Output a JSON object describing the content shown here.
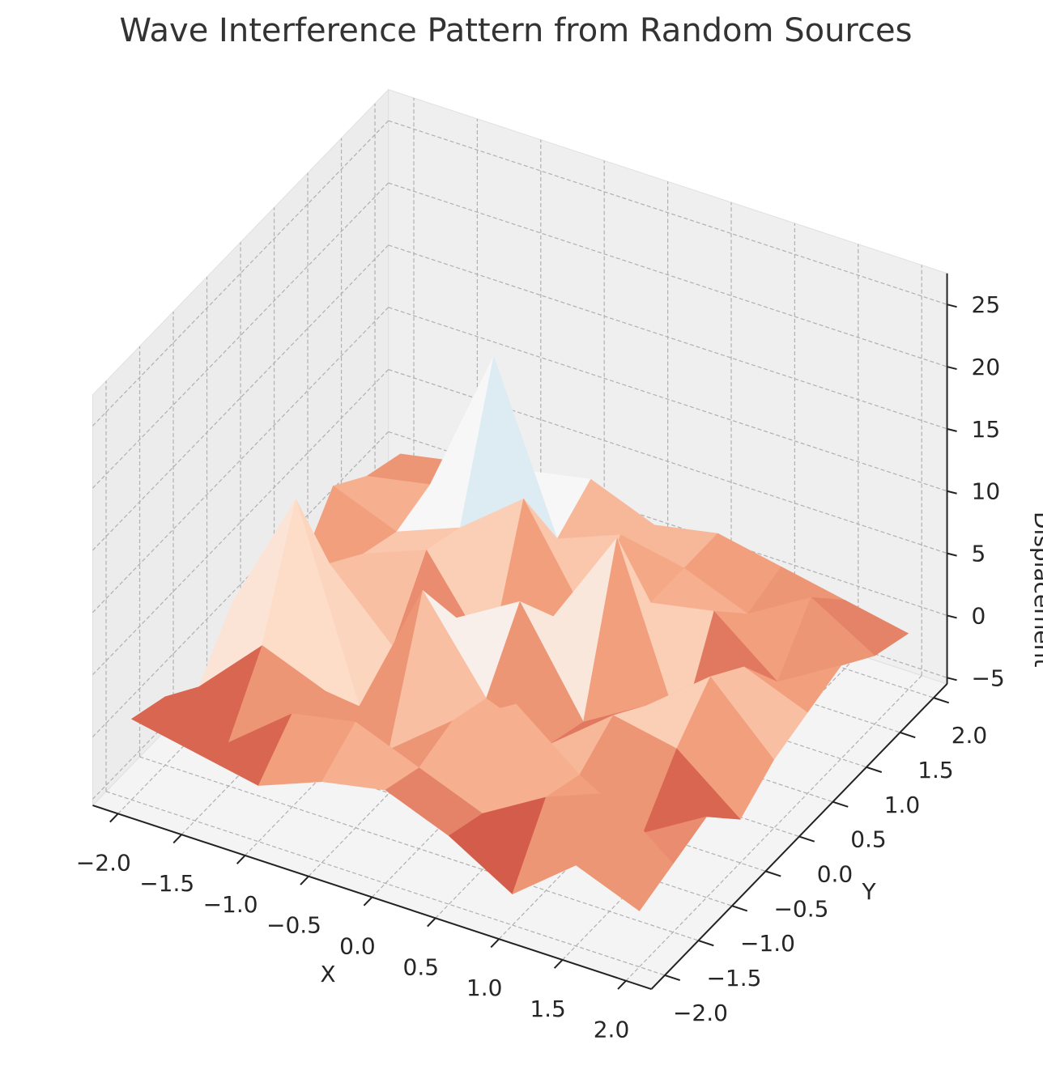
{
  "chart_data": {
    "type": "surface",
    "title": "Wave Interference Pattern from Random Sources",
    "xlabel": "X",
    "ylabel": "Y",
    "zlabel": "Displacement",
    "x": [
      -2,
      -1.5,
      -1,
      -0.5,
      0,
      0.5,
      1,
      1.5,
      2
    ],
    "y": [
      -2,
      -1.5,
      -1,
      -0.5,
      0,
      0.5,
      1,
      1.5,
      2
    ],
    "z": [
      [
        1,
        0,
        -1,
        1,
        2,
        0,
        -3,
        1,
        -1
      ],
      [
        0,
        -2,
        2,
        3,
        1,
        -1,
        2,
        4,
        0
      ],
      [
        -2,
        3,
        1,
        -2,
        2,
        5,
        1,
        -2,
        1
      ],
      [
        2,
        12,
        -3,
        8,
        1,
        -1,
        3,
        2,
        -2
      ],
      [
        1,
        4,
        -1,
        3,
        6,
        -2,
        1,
        5,
        0
      ],
      [
        -1,
        2,
        4,
        -3,
        2,
        10,
        -4,
        3,
        1
      ],
      [
        3,
        1,
        3,
        7,
        -1,
        2,
        3,
        -1,
        2
      ],
      [
        1,
        2,
        14,
        1,
        3,
        2,
        0,
        3,
        0
      ],
      [
        0,
        1,
        2,
        3,
        1,
        2,
        1,
        0,
        -1
      ]
    ],
    "colormap": [
      "#67001f",
      "#b2182b",
      "#d6604d",
      "#f4a582",
      "#fddbc7",
      "#f7f7f7",
      "#d1e5f0",
      "#92c5de",
      "#4393c3",
      "#2166ac",
      "#053061"
    ],
    "xlim": [
      -2.2,
      2.2
    ],
    "ylim": [
      -2.2,
      2.2
    ],
    "zlim": [
      -5.5,
      27.5
    ],
    "xticks": [
      {
        "value": -2,
        "label": "−2.0"
      },
      {
        "value": -1.5,
        "label": "−1.5"
      },
      {
        "value": -1,
        "label": "−1.0"
      },
      {
        "value": -0.5,
        "label": "−0.5"
      },
      {
        "value": 0,
        "label": "0.0"
      },
      0.5,
      {
        "value": 1,
        "label": "1.0"
      },
      1.5,
      {
        "value": 2,
        "label": "2.0"
      }
    ],
    "yticks": [
      {
        "value": -2,
        "label": "−2.0"
      },
      {
        "value": -1.5,
        "label": "−1.5"
      },
      {
        "value": -1,
        "label": "−1.0"
      },
      {
        "value": -0.5,
        "label": "−0.5"
      },
      {
        "value": 0,
        "label": "0.0"
      },
      0.5,
      {
        "value": 1,
        "label": "1.0"
      },
      1.5,
      {
        "value": 2,
        "label": "2.0"
      }
    ],
    "zticks": [
      {
        "value": -5,
        "label": "−5"
      },
      0,
      5,
      10,
      15,
      20,
      25
    ],
    "grid": true
  }
}
